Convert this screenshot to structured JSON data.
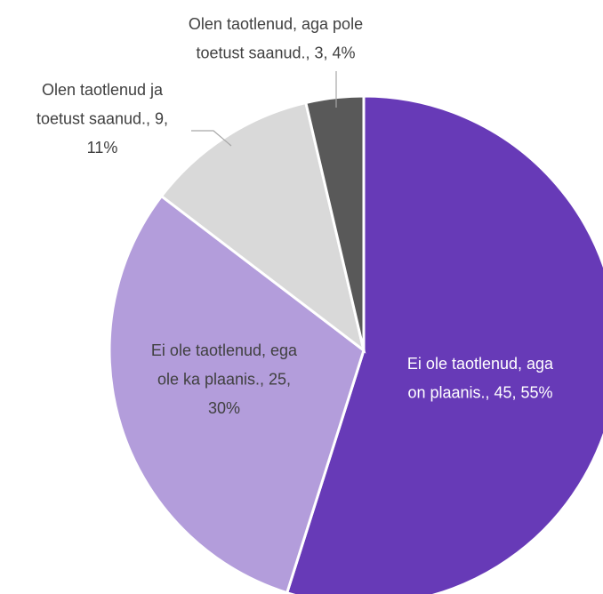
{
  "chart_data": {
    "type": "pie",
    "labels": [
      [
        "Ei ole taotlenud, aga",
        "on plaanis., 45, 55%"
      ],
      [
        "Ei ole taotlenud, ega",
        "ole ka plaanis., 25,",
        "30%"
      ],
      [
        "Olen taotlenud ja",
        "toetust saanud., 9,",
        "11%"
      ],
      [
        "Olen taotlenud, aga pole",
        "toetust saanud., 3, 4%"
      ]
    ],
    "values": [
      45,
      25,
      9,
      3
    ],
    "colors": [
      "#673ab7",
      "#b39ddb",
      "#d9d9d9",
      "#595959"
    ]
  }
}
